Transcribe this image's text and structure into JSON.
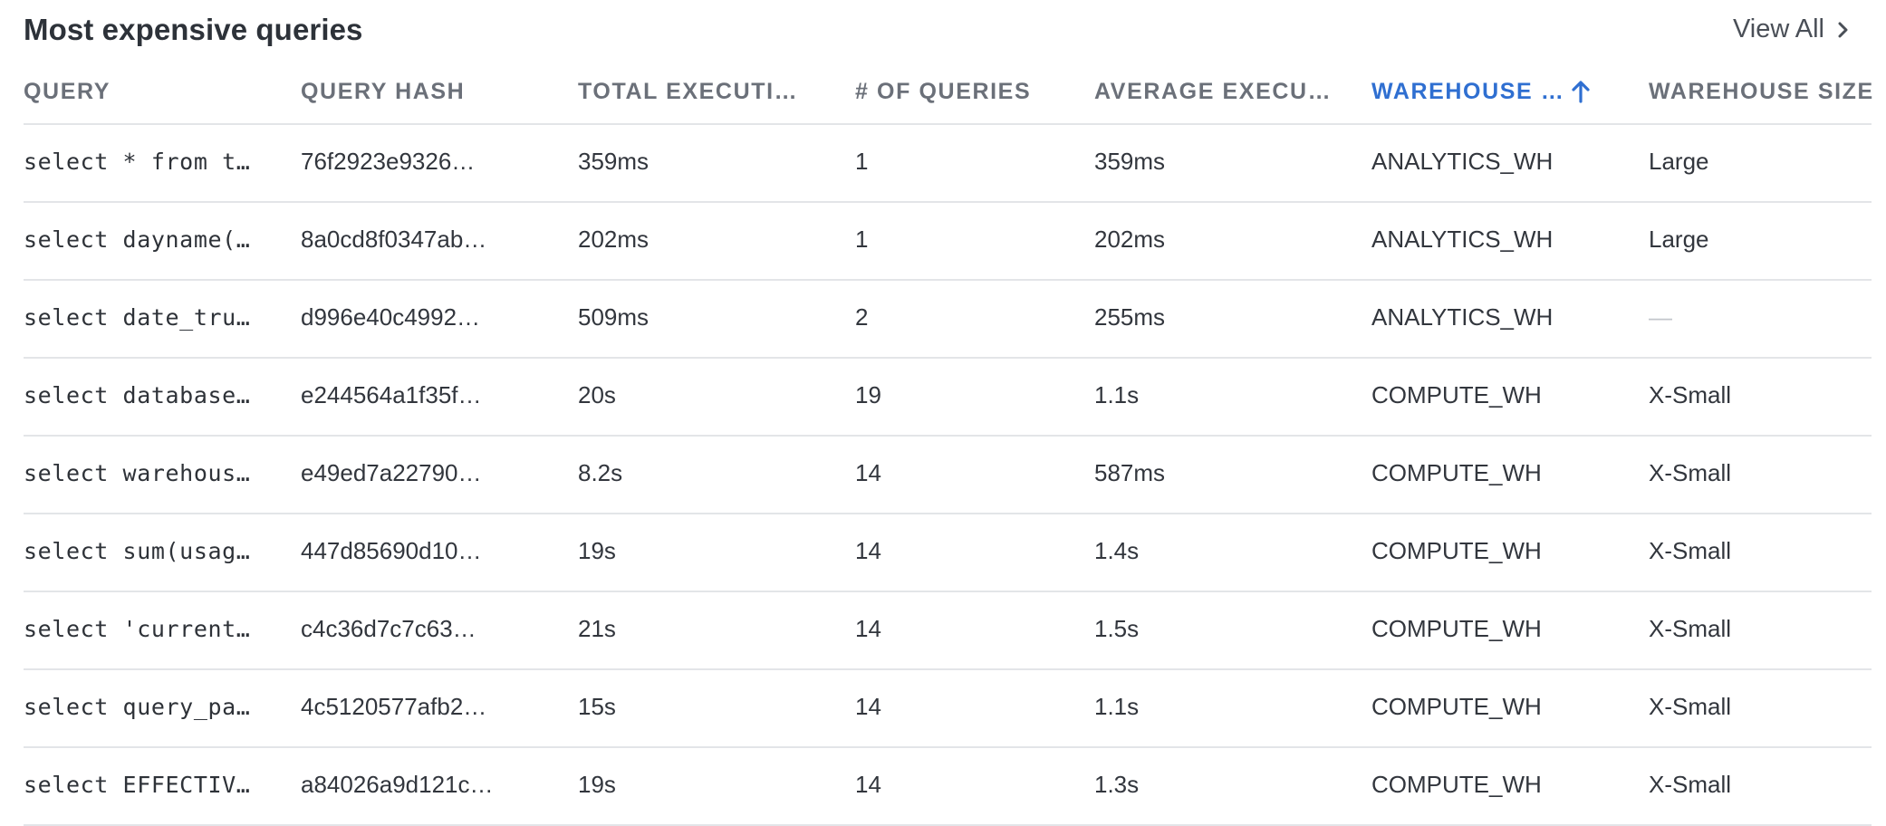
{
  "panel": {
    "title": "Most expensive queries",
    "view_all_label": "View All"
  },
  "columns": [
    {
      "label": "QUERY",
      "sorted": false
    },
    {
      "label": "QUERY HASH",
      "sorted": false
    },
    {
      "label": "TOTAL EXECUTI…",
      "sorted": false
    },
    {
      "label": "# OF QUERIES",
      "sorted": false
    },
    {
      "label": "AVERAGE EXECU…",
      "sorted": false
    },
    {
      "label": "WAREHOUSE …",
      "sorted": true,
      "sort_direction": "ascending"
    },
    {
      "label": "WAREHOUSE SIZE",
      "sorted": false
    }
  ],
  "rows": [
    {
      "query": "select * from t…",
      "hash": "76f2923e9326…",
      "total": "359ms",
      "count": "1",
      "avg": "359ms",
      "warehouse": "ANALYTICS_WH",
      "size": "Large"
    },
    {
      "query": "select dayname(…",
      "hash": "8a0cd8f0347ab…",
      "total": "202ms",
      "count": "1",
      "avg": "202ms",
      "warehouse": "ANALYTICS_WH",
      "size": "Large"
    },
    {
      "query": "select date_tru…",
      "hash": "d996e40c4992…",
      "total": "509ms",
      "count": "2",
      "avg": "255ms",
      "warehouse": "ANALYTICS_WH",
      "size": "—"
    },
    {
      "query": "select database…",
      "hash": "e244564a1f35f…",
      "total": "20s",
      "count": "19",
      "avg": "1.1s",
      "warehouse": "COMPUTE_WH",
      "size": "X-Small"
    },
    {
      "query": "select warehous…",
      "hash": "e49ed7a22790…",
      "total": "8.2s",
      "count": "14",
      "avg": "587ms",
      "warehouse": "COMPUTE_WH",
      "size": "X-Small"
    },
    {
      "query": "select sum(usag…",
      "hash": "447d85690d10…",
      "total": "19s",
      "count": "14",
      "avg": "1.4s",
      "warehouse": "COMPUTE_WH",
      "size": "X-Small"
    },
    {
      "query": "select 'current…",
      "hash": "c4c36d7c7c63…",
      "total": "21s",
      "count": "14",
      "avg": "1.5s",
      "warehouse": "COMPUTE_WH",
      "size": "X-Small"
    },
    {
      "query": "select query_pa…",
      "hash": "4c5120577afb2…",
      "total": "15s",
      "count": "14",
      "avg": "1.1s",
      "warehouse": "COMPUTE_WH",
      "size": "X-Small"
    },
    {
      "query": "select EFFECTIV…",
      "hash": "a84026a9d121c…",
      "total": "19s",
      "count": "14",
      "avg": "1.3s",
      "warehouse": "COMPUTE_WH",
      "size": "X-Small"
    }
  ],
  "icons": {
    "view_all": "chevron-right-icon",
    "sort": "arrow-up-icon"
  },
  "colors": {
    "sort_accent": "#2f6fd1",
    "empty_value": "#c3c6cb"
  }
}
